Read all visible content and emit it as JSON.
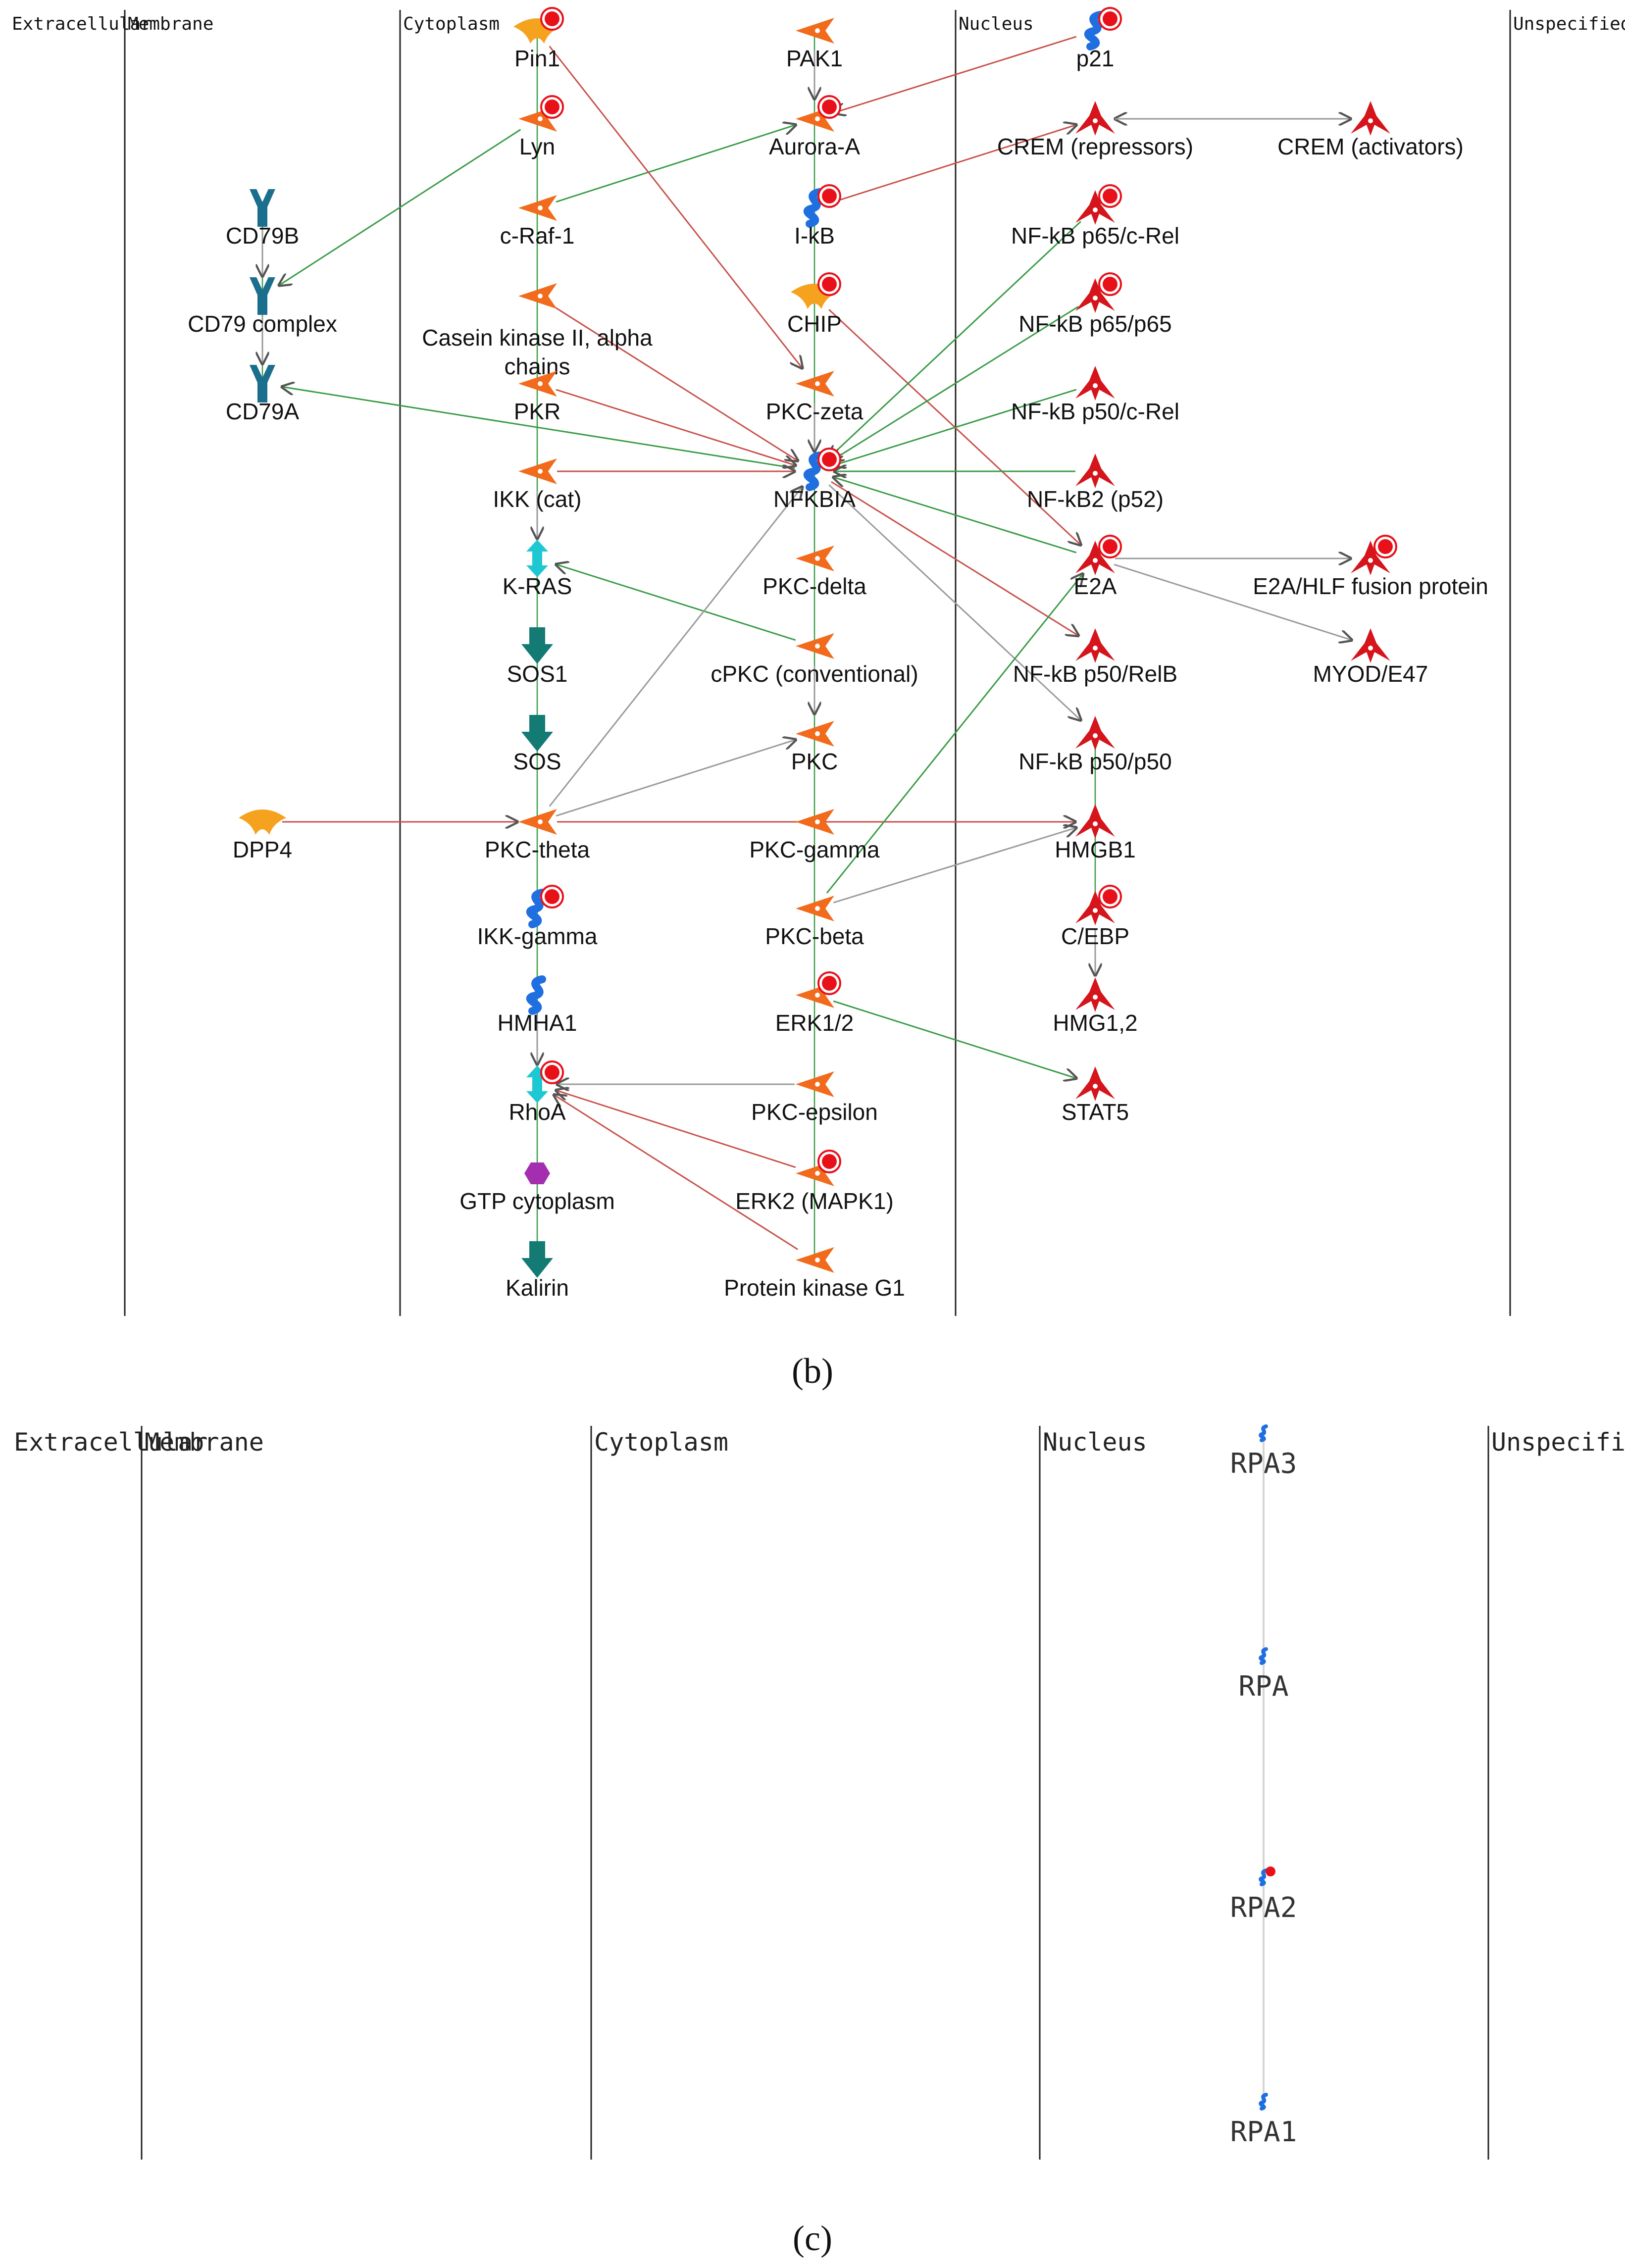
{
  "panel_b": {
    "caption": "(b)",
    "lanes": [
      "Extracellular",
      "Membrane",
      "Cytoplasm",
      "Nucleus",
      "Unspecified"
    ],
    "nodes": [
      {
        "id": "pin1",
        "label": "Pin1",
        "shape": "receptor-y"
      },
      {
        "id": "pak1",
        "label": "PAK1",
        "shape": "kinase"
      },
      {
        "id": "p21",
        "label": "p21",
        "shape": "protein-blue"
      },
      {
        "id": "lyn",
        "label": "Lyn",
        "shape": "kinase"
      },
      {
        "id": "aurora",
        "label": "Aurora-A",
        "shape": "kinase"
      },
      {
        "id": "crem_r",
        "label": "CREM (repressors)",
        "shape": "tf"
      },
      {
        "id": "crem_a",
        "label": "CREM (activators)",
        "shape": "tf"
      },
      {
        "id": "cd79b",
        "label": "CD79B",
        "shape": "receptor-teal"
      },
      {
        "id": "craf",
        "label": "c-Raf-1",
        "shape": "kinase"
      },
      {
        "id": "ikb",
        "label": "I-kB",
        "shape": "protein-blue"
      },
      {
        "id": "nfkb_crel",
        "label": "NF-kB p65/c-Rel",
        "shape": "tf"
      },
      {
        "id": "cd79c",
        "label": "CD79 complex",
        "shape": "receptor-teal"
      },
      {
        "id": "ck2",
        "label": "Casein kinase II, alpha\nchains",
        "shape": "kinase"
      },
      {
        "id": "chip",
        "label": "CHIP",
        "shape": "receptor-y"
      },
      {
        "id": "nfkb_6565",
        "label": "NF-kB p65/p65",
        "shape": "tf"
      },
      {
        "id": "cd79a",
        "label": "CD79A",
        "shape": "receptor-teal"
      },
      {
        "id": "pkr",
        "label": "PKR",
        "shape": "kinase"
      },
      {
        "id": "pkcz",
        "label": "PKC-zeta",
        "shape": "kinase"
      },
      {
        "id": "nfkb_50crel",
        "label": "NF-kB p50/c-Rel",
        "shape": "tf"
      },
      {
        "id": "ikkcat",
        "label": "IKK (cat)",
        "shape": "kinase"
      },
      {
        "id": "nfkbia",
        "label": "NFKBIA",
        "shape": "protein-blue"
      },
      {
        "id": "nfkb2",
        "label": "NF-kB2 (p52)",
        "shape": "tf"
      },
      {
        "id": "kras",
        "label": "K-RAS",
        "shape": "gprotein"
      },
      {
        "id": "pkcd",
        "label": "PKC-delta",
        "shape": "kinase"
      },
      {
        "id": "e2a",
        "label": "E2A",
        "shape": "tf"
      },
      {
        "id": "e2ahlf",
        "label": "E2A/HLF fusion protein",
        "shape": "tf"
      },
      {
        "id": "sos1",
        "label": "SOS1",
        "shape": "arrow-teal"
      },
      {
        "id": "cpkc",
        "label": "cPKC (conventional)",
        "shape": "kinase"
      },
      {
        "id": "nfkb_relb",
        "label": "NF-kB p50/RelB",
        "shape": "tf"
      },
      {
        "id": "myod",
        "label": "MYOD/E47",
        "shape": "tf"
      },
      {
        "id": "sos",
        "label": "SOS",
        "shape": "arrow-teal"
      },
      {
        "id": "pkc",
        "label": "PKC",
        "shape": "kinase"
      },
      {
        "id": "nfkb_5050",
        "label": "NF-kB p50/p50",
        "shape": "tf"
      },
      {
        "id": "dpp4",
        "label": "DPP4",
        "shape": "receptor-y"
      },
      {
        "id": "pkct",
        "label": "PKC-theta",
        "shape": "kinase"
      },
      {
        "id": "pkcg",
        "label": "PKC-gamma",
        "shape": "kinase"
      },
      {
        "id": "hmgb1",
        "label": "HMGB1",
        "shape": "tf"
      },
      {
        "id": "ikkg",
        "label": "IKK-gamma",
        "shape": "protein-blue"
      },
      {
        "id": "pkcb",
        "label": "PKC-beta",
        "shape": "kinase"
      },
      {
        "id": "cebp",
        "label": "C/EBP",
        "shape": "tf"
      },
      {
        "id": "hmha1",
        "label": "HMHA1",
        "shape": "protein-blue"
      },
      {
        "id": "erk12",
        "label": "ERK1/2",
        "shape": "kinase"
      },
      {
        "id": "hmg12",
        "label": "HMG1,2",
        "shape": "tf"
      },
      {
        "id": "rhoa",
        "label": "RhoA",
        "shape": "gprotein"
      },
      {
        "id": "pkce",
        "label": "PKC-epsilon",
        "shape": "kinase"
      },
      {
        "id": "stat5",
        "label": "STAT5",
        "shape": "tf"
      },
      {
        "id": "gtp",
        "label": "GTP cytoplasm",
        "shape": "hexagon"
      },
      {
        "id": "erk2",
        "label": "ERK2 (MAPK1)",
        "shape": "kinase"
      },
      {
        "id": "kalirin",
        "label": "Kalirin",
        "shape": "arrow-teal"
      },
      {
        "id": "pkg1",
        "label": "Protein kinase G1",
        "shape": "kinase"
      }
    ],
    "edges": [
      {
        "from": "pak1",
        "to": "aurora",
        "type": "gray"
      },
      {
        "from": "p21",
        "to": "aurora",
        "type": "red"
      },
      {
        "from": "crem_a",
        "to": "crem_r",
        "type": "green"
      },
      {
        "from": "crem_r",
        "to": "crem_a",
        "type": "gray"
      },
      {
        "from": "ikb",
        "to": "crem_r",
        "type": "red"
      },
      {
        "from": "craf",
        "to": "aurora",
        "type": "green"
      },
      {
        "from": "lyn",
        "to": "cd79c",
        "type": "green"
      },
      {
        "from": "pin1",
        "to": "pkcz",
        "type": "red"
      },
      {
        "from": "cd79b",
        "to": "cd79c",
        "type": "gray"
      },
      {
        "from": "cd79c",
        "to": "cd79a",
        "type": "gray"
      },
      {
        "from": "nfkbia",
        "to": "cd79a",
        "type": "green"
      },
      {
        "from": "chip",
        "to": "e2a",
        "type": "red"
      },
      {
        "from": "pkcz",
        "to": "nfkbia",
        "type": "gray"
      },
      {
        "from": "ck2",
        "to": "nfkbia",
        "type": "red"
      },
      {
        "from": "pkr",
        "to": "nfkbia",
        "type": "red"
      },
      {
        "from": "ikkcat",
        "to": "nfkbia",
        "type": "red"
      },
      {
        "from": "nfkb_crel",
        "to": "nfkbia",
        "type": "green"
      },
      {
        "from": "nfkb_6565",
        "to": "nfkbia",
        "type": "green"
      },
      {
        "from": "nfkb_50crel",
        "to": "nfkbia",
        "type": "green"
      },
      {
        "from": "nfkb2",
        "to": "nfkbia",
        "type": "green"
      },
      {
        "from": "e2a",
        "to": "nfkbia",
        "type": "green"
      },
      {
        "from": "nfkbia",
        "to": "nfkb_relb",
        "type": "red"
      },
      {
        "from": "nfkbia",
        "to": "nfkb_5050",
        "type": "gray"
      },
      {
        "from": "ikkcat",
        "to": "kras",
        "type": "gray"
      },
      {
        "from": "cpkc",
        "to": "kras",
        "type": "green"
      },
      {
        "from": "e2a",
        "to": "e2ahlf",
        "type": "gray"
      },
      {
        "from": "e2a",
        "to": "myod",
        "type": "gray"
      },
      {
        "from": "cpkc",
        "to": "pkc",
        "type": "gray"
      },
      {
        "from": "pkct",
        "to": "pkc",
        "type": "gray"
      },
      {
        "from": "pkct",
        "to": "nfkbia",
        "type": "gray"
      },
      {
        "from": "dpp4",
        "to": "pkct",
        "type": "red"
      },
      {
        "from": "pkct",
        "to": "hmgb1",
        "type": "red"
      },
      {
        "from": "pkcb",
        "to": "hmgb1",
        "type": "gray"
      },
      {
        "from": "pkcb",
        "to": "e2a",
        "type": "green"
      },
      {
        "from": "cebp",
        "to": "hmg12",
        "type": "gray"
      },
      {
        "from": "erk12",
        "to": "stat5",
        "type": "green"
      },
      {
        "from": "hmha1",
        "to": "rhoa",
        "type": "gray"
      },
      {
        "from": "pkce",
        "to": "rhoa",
        "type": "gray"
      },
      {
        "from": "erk2",
        "to": "rhoa",
        "type": "red"
      },
      {
        "from": "pkg1",
        "to": "rhoa",
        "type": "red"
      }
    ]
  },
  "panel_c": {
    "caption": "(c)",
    "lanes": [
      "Extracellular",
      "Membrane",
      "Cytoplasm",
      "Nucleus",
      "Unspecified"
    ],
    "nodes": [
      {
        "id": "rpa3",
        "label": "RPA3"
      },
      {
        "id": "rpa",
        "label": "RPA"
      },
      {
        "id": "rpa2",
        "label": "RPA2"
      },
      {
        "id": "rpa1",
        "label": "RPA1"
      }
    ]
  },
  "colors": {
    "kinase": "#f26a1b",
    "tf": "#d5141b",
    "blue_protein": "#1f6fe0",
    "teal_receptor": "#1b6e8c",
    "teal_arrow": "#147a74",
    "cyan_gprotein": "#1ec8d2",
    "yellow": "#f5a21f",
    "purple": "#a32fb0",
    "marker": "#e8111a",
    "edge_green": "#3a9c47",
    "edge_red": "#c9524c",
    "edge_gray": "#9a9a9a"
  }
}
